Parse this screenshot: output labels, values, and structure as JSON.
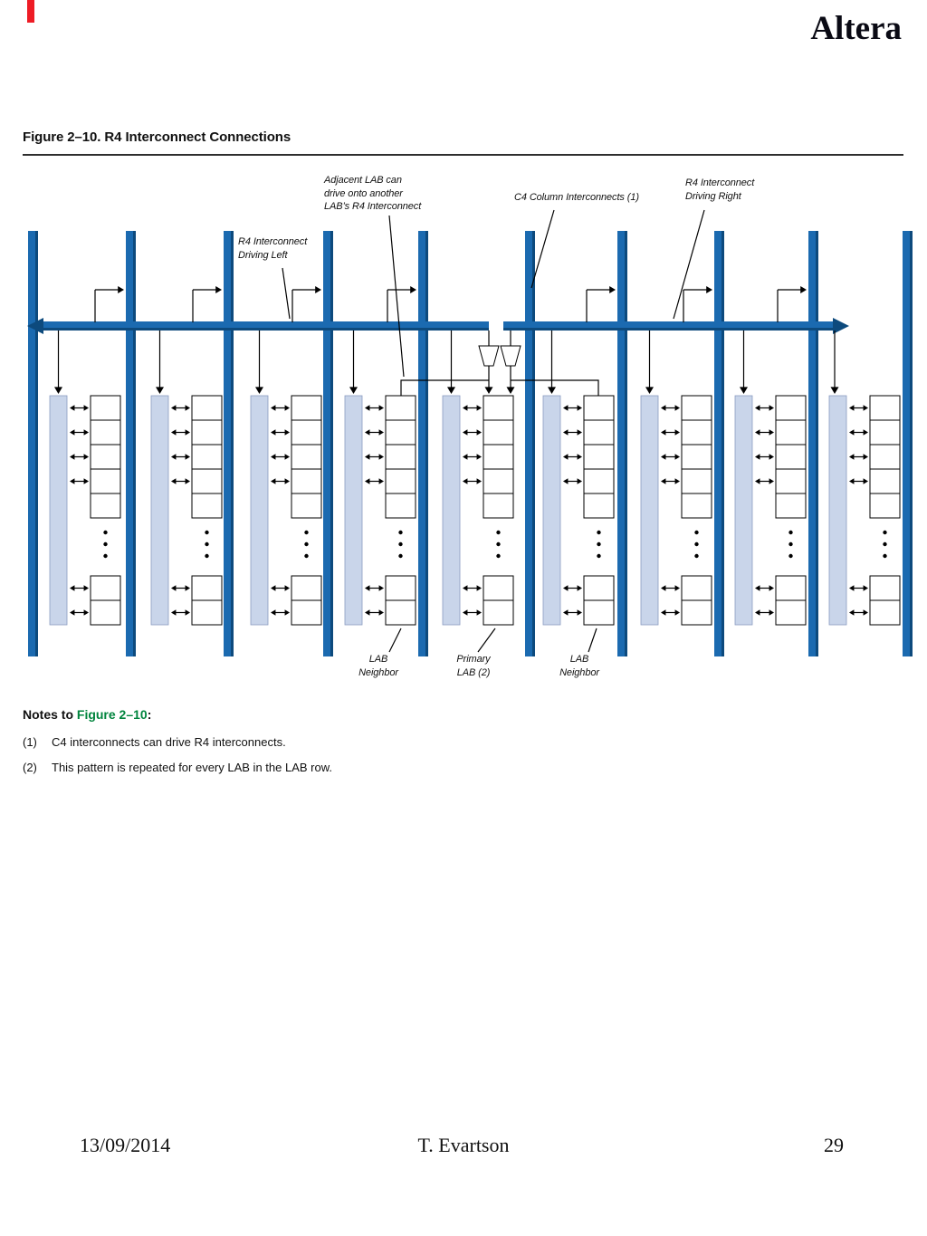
{
  "header": {
    "brand": "Altera"
  },
  "figure": {
    "title": "Figure 2–10.  R4 Interconnect Connections",
    "labels": {
      "adjacent_lab": "Adjacent LAB can\ndrive onto another\nLAB’s R4 Interconnect",
      "c4_column": "C4 Column Interconnects (1)",
      "driving_right": "R4 Interconnect\nDriving Right",
      "driving_left": "R4 Interconnect\nDriving Left",
      "lab_neighbor_left": "LAB\nNeighbor",
      "primary_lab": "Primary\nLAB (2)",
      "lab_neighbor_right": "LAB\nNeighbor"
    },
    "colors": {
      "bar_blue": "#1b6ab0",
      "bar_blue_dark": "#0d4a7d",
      "lab_fill": "#c9d5ea",
      "link_green": "#00843d",
      "corner_red": "#ee1c25"
    }
  },
  "notes": {
    "heading_prefix": "Notes to ",
    "heading_link": "Figure 2–10",
    "heading_suffix": ":",
    "items": [
      {
        "num": "(1)",
        "text": "C4 interconnects can drive R4 interconnects."
      },
      {
        "num": "(2)",
        "text": "This pattern is repeated for every LAB in the LAB row."
      }
    ]
  },
  "footer": {
    "date": "13/09/2014",
    "author": "T. Evartson",
    "page": "29"
  }
}
